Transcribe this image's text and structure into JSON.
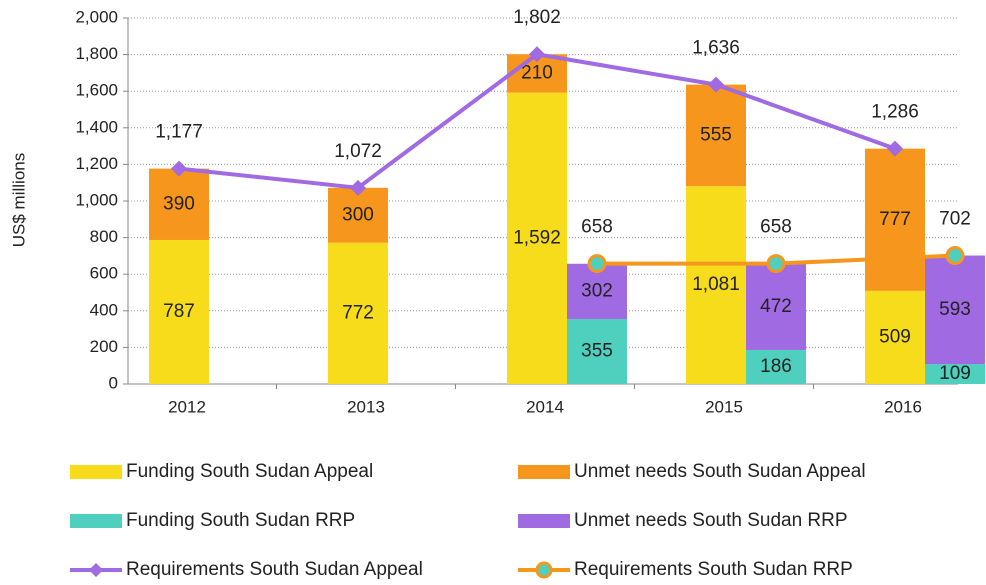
{
  "chart_data": {
    "type": "bar",
    "y_label": "US$ millions",
    "categories": [
      "2012",
      "2013",
      "2014",
      "2015",
      "2016"
    ],
    "ylim": [
      0,
      2000
    ],
    "yticks": [
      0,
      200,
      400,
      600,
      800,
      {
        "value": 1000,
        "label": "1,000"
      },
      {
        "value": 1200,
        "label": "1,200"
      },
      {
        "value": 1400,
        "label": "1,400"
      },
      {
        "value": 1600,
        "label": "1,600"
      },
      {
        "value": 1800,
        "label": "1,800"
      },
      {
        "value": 2000,
        "label": "2,000"
      }
    ],
    "grid": true,
    "series": [
      {
        "name": "Funding South Sudan Appeal",
        "kind": "bar",
        "stack": "appeal",
        "color": "#f7dc1c",
        "values": [
          787,
          772,
          1592,
          1081,
          509
        ],
        "value_labels": [
          "787",
          "772",
          "1,592",
          "1,081",
          "509"
        ]
      },
      {
        "name": "Unmet needs South Sudan Appeal",
        "kind": "bar",
        "stack": "appeal",
        "color": "#f7961c",
        "values": [
          390,
          300,
          210,
          555,
          777
        ]
      },
      {
        "name": "Funding South Sudan RRP",
        "kind": "bar",
        "stack": "rrp",
        "color": "#4fcfbe",
        "values": [
          null,
          null,
          355,
          186,
          109
        ]
      },
      {
        "name": "Unmet needs South Sudan RRP",
        "kind": "bar",
        "stack": "rrp",
        "color": "#9f6ae2",
        "values": [
          null,
          null,
          302,
          472,
          593
        ]
      },
      {
        "name": "Requirements South Sudan Appeal",
        "kind": "line",
        "stack": "appeal",
        "color": "#9f6ae2",
        "marker": "diamond",
        "values": [
          1177,
          1072,
          1802,
          1636,
          1286
        ],
        "value_labels": [
          "1,177",
          "1,072",
          "1,802",
          "1,636",
          "1,286"
        ]
      },
      {
        "name": "Requirements South Sudan RRP",
        "kind": "line",
        "stack": "rrp",
        "color": "#f7961c",
        "marker": "circle",
        "marker_fill": "#4fcfbe",
        "values": [
          null,
          null,
          658,
          658,
          702
        ]
      }
    ]
  }
}
